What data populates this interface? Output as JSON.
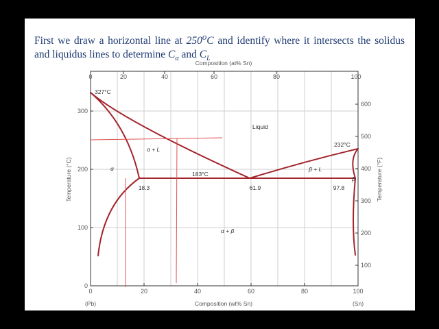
{
  "caption": {
    "t1": "First we draw a horizontal line at ",
    "temp": "250",
    "deg": "o",
    "unitC": "C",
    "t2": " and identify where it intersects the solidus and liquidus lines to determine ",
    "ca": "C",
    "ca_sub": "α",
    "and": " and ",
    "cl": "C",
    "cl_sub": "L"
  },
  "axes": {
    "top_title": "Composition (at% Sn)",
    "top_ticks": [
      "0",
      "20",
      "40",
      "60",
      "80",
      "100"
    ],
    "bottom_title": "Composition (wt% Sn)",
    "bottom_ticks": [
      "0",
      "20",
      "40",
      "60",
      "80",
      "100"
    ],
    "left_title": "Temperature (°C)",
    "left_ticks": [
      "0",
      "100",
      "200",
      "300"
    ],
    "right_title": "Temperature (°F)",
    "right_ticks": [
      "100",
      "200",
      "300",
      "400",
      "500",
      "600"
    ],
    "pb": "(Pb)",
    "sn": "(Sn)"
  },
  "labels": {
    "pb_melt": "327°C",
    "sn_melt": "232°C",
    "eutectic_temp": "183°C",
    "liquid": "Liquid",
    "alpha_l": "α + L",
    "alpha": "α",
    "beta_l": "β + L",
    "beta": "β",
    "alpha_beta": "α + β",
    "c_alpha_eut": "18.3",
    "c_eut": "61.9",
    "c_beta_eut": "97.8"
  },
  "colors": {
    "phase_line": "#a3242b",
    "annotation": "#e05050",
    "grid": "#cfcfcf",
    "caption": "#1f3b73"
  }
}
